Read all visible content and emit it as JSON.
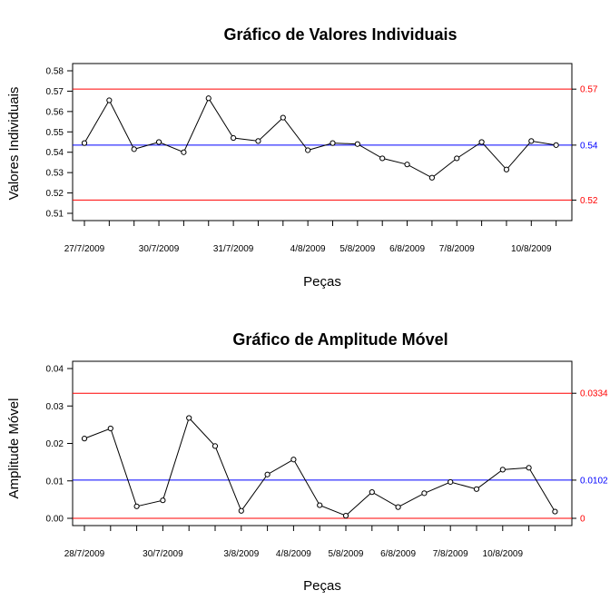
{
  "colors": {
    "limit": "#ff0000",
    "center": "#0000ff",
    "series": "#000000"
  },
  "chart_data": [
    {
      "type": "line",
      "title": "Gráfico de Valores Individuais",
      "xlabel": "Peças",
      "ylabel": "Valores Individuais",
      "ylim": [
        0.51,
        0.58
      ],
      "yticks": [
        "0.51",
        "0.52",
        "0.53",
        "0.54",
        "0.55",
        "0.56",
        "0.57",
        "0.58"
      ],
      "x_tick_labels": [
        {
          "index": 1,
          "label": "27/7/2009"
        },
        {
          "index": 4,
          "label": "30/7/2009"
        },
        {
          "index": 7,
          "label": "31/7/2009"
        },
        {
          "index": 10,
          "label": "4/8/2009"
        },
        {
          "index": 12,
          "label": "5/8/2009"
        },
        {
          "index": 14,
          "label": "6/8/2009"
        },
        {
          "index": 16,
          "label": "7/8/2009"
        },
        {
          "index": 19,
          "label": "10/8/2009"
        }
      ],
      "values": [
        0.5445,
        0.5655,
        0.5415,
        0.545,
        0.54,
        0.5665,
        0.547,
        0.5455,
        0.557,
        0.541,
        0.5445,
        0.544,
        0.537,
        0.534,
        0.5275,
        0.537,
        0.545,
        0.5315,
        0.5455,
        0.5435
      ],
      "ucl": 0.571,
      "center": 0.5435,
      "lcl": 0.5165,
      "ucl_label": "0.57",
      "center_label": "0.54",
      "lcl_label": "0.52"
    },
    {
      "type": "line",
      "title": "Gráfico de Amplitude Móvel",
      "xlabel": "Peças",
      "ylabel": "Amplitude Móvel",
      "ylim": [
        0.0,
        0.04
      ],
      "yticks": [
        "0.00",
        "0.01",
        "0.02",
        "0.03",
        "0.04"
      ],
      "x_tick_labels": [
        {
          "index": 1,
          "label": "28/7/2009"
        },
        {
          "index": 4,
          "label": "30/7/2009"
        },
        {
          "index": 7,
          "label": "3/8/2009"
        },
        {
          "index": 9,
          "label": "4/8/2009"
        },
        {
          "index": 11,
          "label": "5/8/2009"
        },
        {
          "index": 13,
          "label": "6/8/2009"
        },
        {
          "index": 15,
          "label": "7/8/2009"
        },
        {
          "index": 17,
          "label": "10/8/2009"
        }
      ],
      "values": [
        0.0213,
        0.024,
        0.0032,
        0.0048,
        0.0268,
        0.0193,
        0.002,
        0.0117,
        0.0157,
        0.0035,
        0.0007,
        0.007,
        0.003,
        0.0067,
        0.0097,
        0.0078,
        0.013,
        0.0135,
        0.0018
      ],
      "ucl": 0.0334,
      "center": 0.0102,
      "lcl": 0.0,
      "ucl_label": "0.0334",
      "center_label": "0.0102",
      "lcl_label": "0"
    }
  ]
}
